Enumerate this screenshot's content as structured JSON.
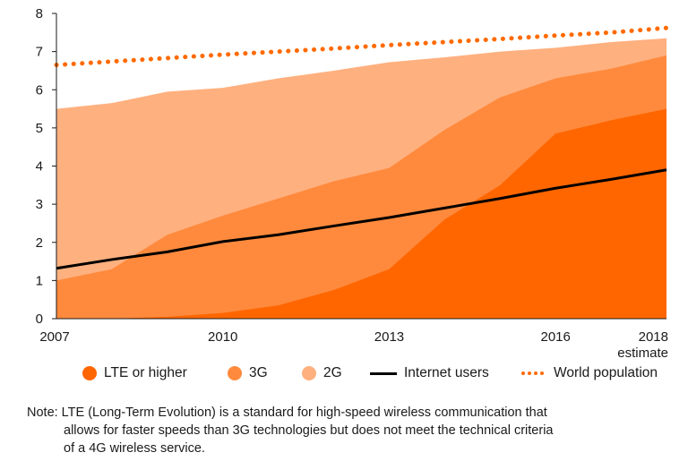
{
  "chart_data": {
    "type": "area",
    "x": [
      2007,
      2008,
      2009,
      2010,
      2011,
      2012,
      2013,
      2014,
      2015,
      2016,
      2017,
      2018
    ],
    "series": [
      {
        "name": "LTE or higher",
        "kind": "area",
        "color": "#ff6600",
        "values": [
          0,
          0,
          0.05,
          0.15,
          0.35,
          0.75,
          1.3,
          2.6,
          3.5,
          4.85,
          5.2,
          5.5
        ]
      },
      {
        "name": "3G",
        "kind": "area",
        "color": "#ff8a3d",
        "values": [
          1.0,
          1.3,
          2.2,
          2.7,
          3.15,
          3.6,
          3.95,
          4.95,
          5.8,
          6.3,
          6.55,
          6.9
        ]
      },
      {
        "name": "2G",
        "kind": "area",
        "color": "#ffb07f",
        "values": [
          5.5,
          5.65,
          5.95,
          6.05,
          6.3,
          6.5,
          6.72,
          6.85,
          7.0,
          7.1,
          7.25,
          7.35
        ]
      },
      {
        "name": "Internet users",
        "kind": "line",
        "color": "#000000",
        "values": [
          1.32,
          1.55,
          1.75,
          2.02,
          2.2,
          2.43,
          2.65,
          2.9,
          3.15,
          3.42,
          3.65,
          3.9
        ]
      },
      {
        "name": "World population",
        "kind": "dotted",
        "color": "#ff6a00",
        "values": [
          6.65,
          6.74,
          6.83,
          6.92,
          7.0,
          7.08,
          7.17,
          7.25,
          7.33,
          7.42,
          7.5,
          7.62
        ]
      }
    ],
    "xlim": [
      2007,
      2018
    ],
    "ylim": [
      0,
      8
    ],
    "y_ticks": [
      "0",
      "1",
      "2",
      "3",
      "4",
      "5",
      "6",
      "7",
      "8"
    ],
    "x_ticks": [
      {
        "value": 2007,
        "label": "2007"
      },
      {
        "value": 2010,
        "label": "2010"
      },
      {
        "value": 2013,
        "label": "2013"
      },
      {
        "value": 2016,
        "label": "2016"
      },
      {
        "value": 2018,
        "label": "2018"
      }
    ],
    "x_tick_sublabel": "estimate",
    "legend_placement": "bottom",
    "grid": false
  },
  "legend": [
    {
      "label": "LTE or higher",
      "color": "#ff6600",
      "style": "dot"
    },
    {
      "label": "3G",
      "color": "#ff8a3d",
      "style": "dot"
    },
    {
      "label": "2G",
      "color": "#ffb07f",
      "style": "dot"
    },
    {
      "label": "Internet users",
      "color": "#000000",
      "style": "line"
    },
    {
      "label": "World population",
      "color": "#ff6a00",
      "style": "dots"
    }
  ],
  "note": {
    "line1": "Note: LTE (Long-Term Evolution) is a standard for high-speed wireless communication that",
    "line2": "allows for faster speeds than 3G technologies but does not meet the technical criteria",
    "line3": "of a 4G wireless service."
  }
}
